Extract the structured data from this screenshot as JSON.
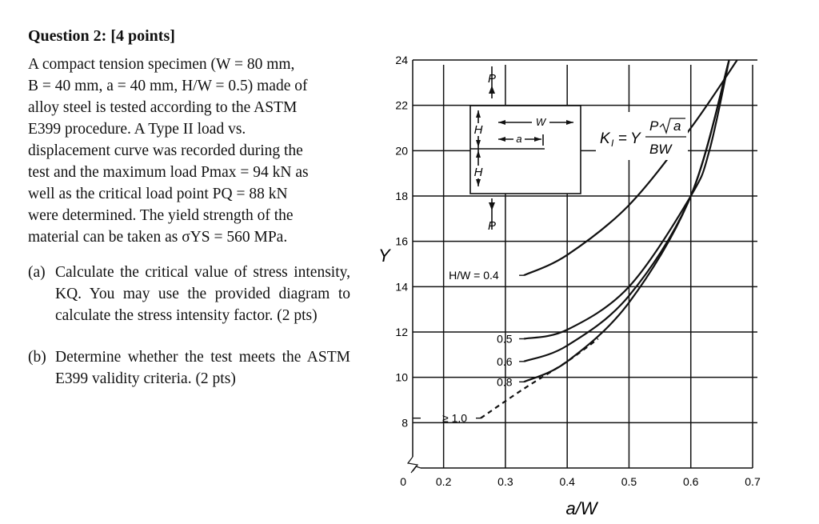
{
  "question": {
    "title": "Question 2: [4 points]"
  },
  "problem": {
    "lines": [
      "A compact tension specimen (W = 80 mm,",
      "B = 40 mm, a = 40 mm, H/W = 0.5) made of",
      "alloy steel is tested according to the ASTM",
      "E399 procedure. A Type II load vs.",
      "displacement curve was recorded during the",
      "test and the maximum load Pmax = 94 kN as",
      "well as the critical load point PQ = 88 kN",
      "were determined. The yield strength of the",
      "material can be taken as σYS = 560 MPa."
    ]
  },
  "parts": {
    "a": {
      "label": "(a)",
      "text": "Calculate the critical value of stress intensity, KQ. You may use the provided diagram to calculate the stress intensity factor. (2 pts)"
    },
    "b": {
      "label": "(b)",
      "text": "Determine whether the test meets the ASTM E399 validity criteria. (2 pts)"
    }
  },
  "chart_data": {
    "type": "line",
    "title": "",
    "xlabel": "a/W",
    "ylabel": "Y",
    "xlim": [
      0.15,
      0.7
    ],
    "ylim": [
      6,
      24
    ],
    "x_ticks": [
      "0.2",
      "0.3",
      "0.4",
      "0.5",
      "0.6",
      "0.7"
    ],
    "y_ticks": [
      "8",
      "10",
      "12",
      "14",
      "16",
      "18",
      "20",
      "22",
      "24"
    ],
    "y_origin_label": "0",
    "formula": "K_I = Y P√a / BW",
    "specimen_labels": {
      "P": "P",
      "H": "H",
      "W": "W",
      "a": "a"
    },
    "series": [
      {
        "name": "H/W = 0.4",
        "label": "H/W = 0.4",
        "x": [
          0.33,
          0.4,
          0.5,
          0.6,
          0.675
        ],
        "y": [
          14.5,
          15.4,
          17.6,
          21.0,
          24.0
        ]
      },
      {
        "name": "0.5",
        "label": "0.5",
        "x": [
          0.33,
          0.4,
          0.5,
          0.6,
          0.63,
          0.662
        ],
        "y": [
          11.7,
          12.1,
          14.0,
          18.0,
          20.0,
          24.0
        ]
      },
      {
        "name": "0.6",
        "label": "0.6",
        "x": [
          0.33,
          0.4,
          0.5,
          0.6,
          0.662
        ],
        "y": [
          10.7,
          11.4,
          13.6,
          18.0,
          24.0
        ]
      },
      {
        "name": "0.8",
        "label": "0.8",
        "x": [
          0.33,
          0.4,
          0.5,
          0.6,
          0.662
        ],
        "y": [
          9.8,
          10.7,
          13.3,
          18.0,
          24.0
        ]
      },
      {
        "name": "≥ 1.0",
        "label": "≥ 1.0",
        "dashed": true,
        "x": [
          0.26,
          0.33,
          0.4,
          0.45
        ],
        "y": [
          8.2,
          9.5,
          10.7,
          11.7
        ]
      }
    ]
  }
}
